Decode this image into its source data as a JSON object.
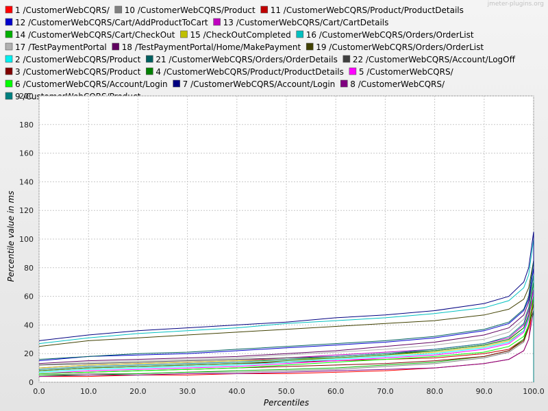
{
  "watermark": "jmeter-plugins.org",
  "chart_data": {
    "type": "line",
    "title": "",
    "xlabel": "Percentiles",
    "ylabel": "Percentile value in ms",
    "xlim": [
      0,
      100
    ],
    "ylim": [
      0,
      200
    ],
    "x_ticks": [
      "0.0",
      "10.0",
      "20.0",
      "30.0",
      "40.0",
      "50.0",
      "60.0",
      "70.0",
      "80.0",
      "90.0",
      "100.0"
    ],
    "y_ticks": [
      "0",
      "20",
      "40",
      "60",
      "80",
      "100",
      "120",
      "140",
      "160",
      "180",
      "200"
    ],
    "grid": true,
    "legend_position": "top",
    "x": [
      0,
      10,
      20,
      30,
      40,
      50,
      60,
      70,
      80,
      90,
      95,
      98,
      99,
      100
    ],
    "series": [
      {
        "name": "1 /CustomerWebCQRS/",
        "color": "#ff0000",
        "values": [
          4,
          4,
          5,
          5,
          6,
          6,
          7,
          8,
          10,
          13,
          16,
          22,
          30,
          60
        ]
      },
      {
        "name": "10 /CustomerWebCQRS/Product",
        "color": "#808080",
        "values": [
          5,
          6,
          6,
          7,
          7,
          8,
          9,
          11,
          13,
          17,
          21,
          28,
          38,
          55
        ]
      },
      {
        "name": "11 /CustomerWebCQRS/Product/ProductDetails",
        "color": "#c00000",
        "values": [
          8,
          10,
          11,
          12,
          13,
          14,
          15,
          16,
          17,
          20,
          23,
          30,
          40,
          60
        ]
      },
      {
        "name": "12 /CustomerWebCQRS/Cart/AddProductToCart",
        "color": "#0000cc",
        "values": [
          15,
          18,
          19,
          20,
          22,
          24,
          26,
          28,
          31,
          36,
          41,
          50,
          58,
          80
        ]
      },
      {
        "name": "13 /CustomerWebCQRS/Cart/CartDetails",
        "color": "#c000c0",
        "values": [
          10,
          12,
          13,
          14,
          15,
          17,
          19,
          21,
          23,
          27,
          31,
          40,
          50,
          65
        ]
      },
      {
        "name": "14 /CustomerWebCQRS/Cart/CheckOut",
        "color": "#00b000",
        "values": [
          5,
          5,
          6,
          7,
          8,
          9,
          10,
          12,
          14,
          18,
          22,
          30,
          40,
          50
        ]
      },
      {
        "name": "15 /CheckOutCompleted",
        "color": "#c0c000",
        "values": [
          10,
          12,
          13,
          14,
          15,
          16,
          17,
          19,
          21,
          25,
          29,
          36,
          45,
          55
        ]
      },
      {
        "name": "16 /CustomerWebCQRS/Orders/OrderList",
        "color": "#00c0c0",
        "values": [
          27,
          31,
          34,
          36,
          38,
          41,
          43,
          45,
          48,
          52,
          57,
          66,
          75,
          100
        ]
      },
      {
        "name": "17 /TestPaymentPortal",
        "color": "#b0b0b0",
        "values": [
          12,
          14,
          15,
          16,
          17,
          19,
          21,
          23,
          26,
          30,
          35,
          44,
          52,
          62
        ]
      },
      {
        "name": "18 /TestPaymentPortal/Home/MakePayment",
        "color": "#600060",
        "values": [
          13,
          15,
          16,
          17,
          18,
          20,
          22,
          25,
          28,
          33,
          38,
          47,
          56,
          75
        ]
      },
      {
        "name": "19 /CustomerWebCQRS/Orders/OrderList",
        "color": "#404000",
        "values": [
          25,
          29,
          31,
          33,
          35,
          37,
          39,
          41,
          43,
          47,
          51,
          58,
          66,
          85
        ]
      },
      {
        "name": "2 /CustomerWebCQRS/Product",
        "color": "#00f0f0",
        "values": [
          7,
          9,
          10,
          11,
          12,
          14,
          16,
          18,
          20,
          24,
          28,
          36,
          46,
          70
        ]
      },
      {
        "name": "21 /CustomerWebCQRS/Orders/OrderDetails",
        "color": "#006060",
        "values": [
          16,
          18,
          20,
          21,
          23,
          25,
          27,
          29,
          32,
          37,
          42,
          51,
          60,
          85
        ]
      },
      {
        "name": "22 /CustomerWebCQRS/Account/LogOff",
        "color": "#404040",
        "values": [
          12,
          13,
          14,
          15,
          16,
          17,
          18,
          20,
          22,
          26,
          30,
          38,
          47,
          60
        ]
      },
      {
        "name": "3 /CustomerWebCQRS/Product",
        "color": "#800000",
        "values": [
          6,
          7,
          8,
          9,
          10,
          11,
          12,
          13,
          15,
          18,
          22,
          29,
          38,
          55
        ]
      },
      {
        "name": "4 /CustomerWebCQRS/Product/ProductDetails",
        "color": "#008000",
        "values": [
          8,
          10,
          11,
          12,
          13,
          15,
          17,
          19,
          22,
          26,
          30,
          38,
          47,
          70
        ]
      },
      {
        "name": "5 /CustomerWebCQRS/",
        "color": "#ff00ff",
        "values": [
          6,
          8,
          9,
          10,
          11,
          13,
          15,
          17,
          19,
          23,
          27,
          35,
          44,
          65
        ]
      },
      {
        "name": "6 /CustomerWebCQRS/Account/Login",
        "color": "#00ff00",
        "values": [
          6,
          7,
          8,
          9,
          10,
          12,
          14,
          16,
          18,
          21,
          25,
          32,
          40,
          60
        ]
      },
      {
        "name": "7 /CustomerWebCQRS/Account/Login",
        "color": "#000080",
        "values": [
          29,
          33,
          36,
          38,
          40,
          42,
          45,
          47,
          50,
          55,
          60,
          70,
          80,
          105
        ]
      },
      {
        "name": "8 /CustomerWebCQRS/",
        "color": "#800080",
        "values": [
          4,
          5,
          5,
          6,
          6,
          7,
          8,
          9,
          10,
          13,
          16,
          22,
          30,
          50
        ]
      },
      {
        "name": "9 /CustomerWebCQRS/Product",
        "color": "#008080",
        "values": [
          9,
          11,
          12,
          13,
          14,
          16,
          18,
          20,
          23,
          27,
          32,
          41,
          52,
          75
        ]
      }
    ]
  }
}
